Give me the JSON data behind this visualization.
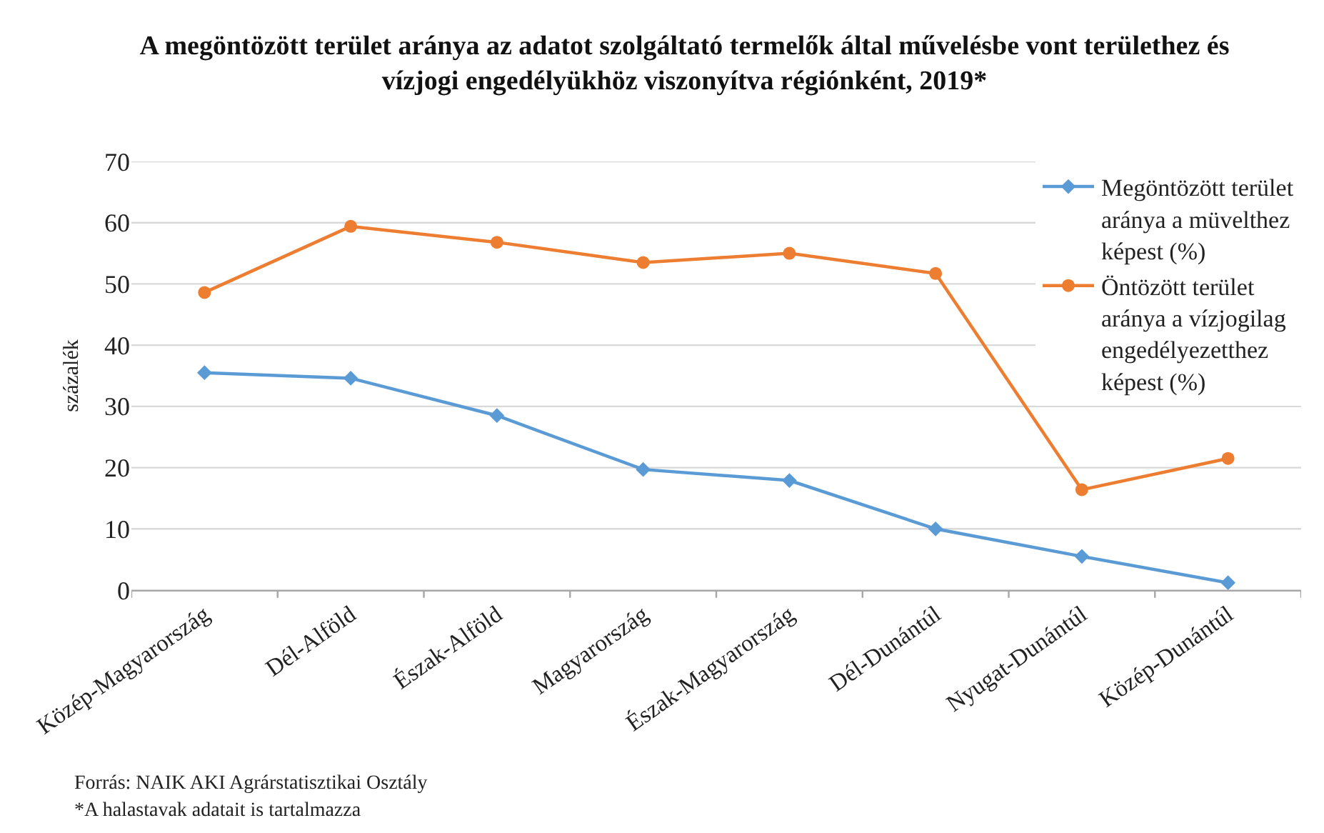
{
  "chart_data": {
    "type": "line",
    "title": "A megöntözött terület aránya az adatot szolgáltató termelők által művelésbe vont területhez és vízjogi engedélyükhöz viszonyítva régiónként, 2019*",
    "ylabel": "százalék",
    "categories": [
      "Közép-Magyarország",
      "Dél-Alföld",
      "Észak-Alföld",
      "Magyarország",
      "Észak-Magyarország",
      "Dél-Dunántúl",
      "Nyugat-Dunántúl",
      "Közép-Dunántúl"
    ],
    "series": [
      {
        "name": "Megöntözött terület aránya a müvelthez képest (%)",
        "color": "#5b9bd5",
        "marker": "diamond",
        "values": [
          35.5,
          34.6,
          28.5,
          19.7,
          17.9,
          10.0,
          5.5,
          1.2
        ]
      },
      {
        "name": "Öntözött terület aránya a vízjogilag engedélyezetthez képest (%)",
        "color": "#ed7d31",
        "marker": "circle",
        "values": [
          48.6,
          59.4,
          56.8,
          53.5,
          55.0,
          51.7,
          16.4,
          21.5
        ]
      }
    ],
    "ylim": [
      0,
      70
    ],
    "yticks": [
      0,
      10,
      20,
      30,
      40,
      50,
      60,
      70
    ],
    "grid": "y",
    "legend": "top right",
    "line_style": "solid",
    "annotations": [
      "Forrás: NAIK AKI Agrárstatisztikai Osztály",
      "*A halastavak adatait is tartalmazza"
    ]
  }
}
